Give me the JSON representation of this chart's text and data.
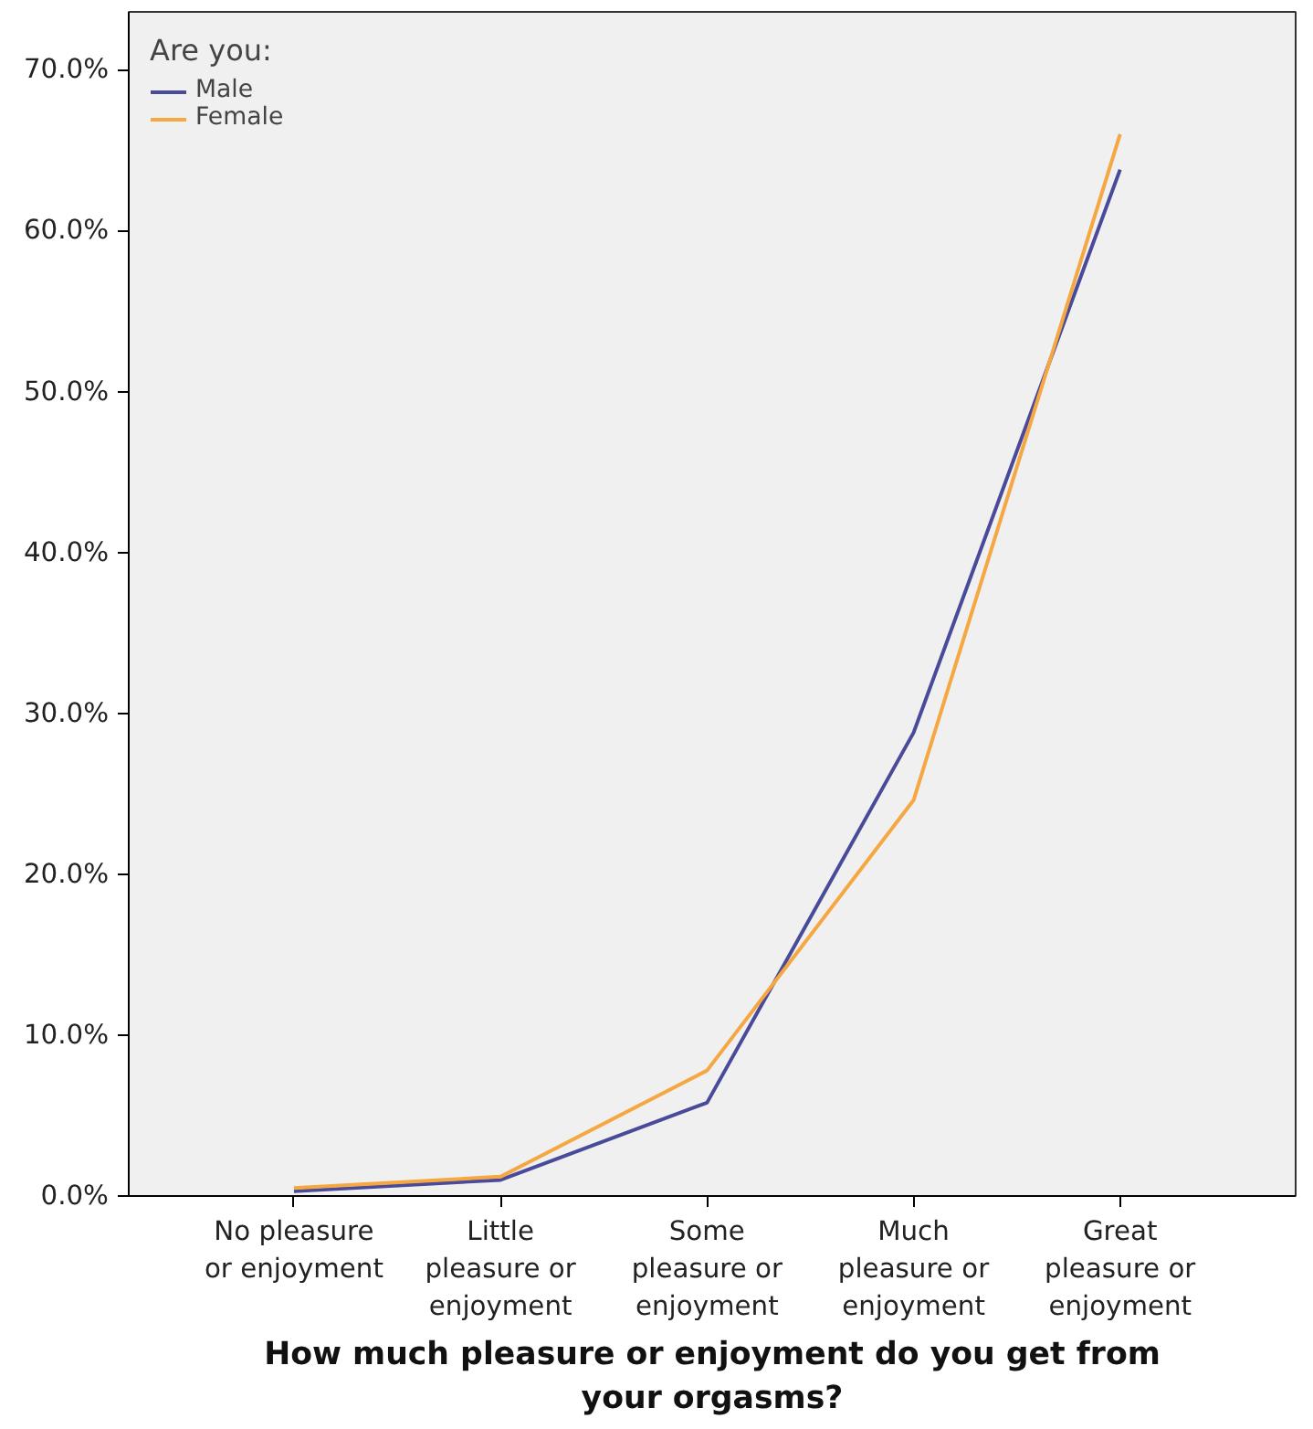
{
  "chart_data": {
    "type": "line",
    "xlabel": "How much pleasure or enjoyment do you get from your orgasms?",
    "legend_title": "Are you:",
    "legend": "top left",
    "grid": false,
    "categories": [
      "No pleasure or enjoyment",
      "Little pleasure or enjoyment",
      "Some pleasure or enjoyment",
      "Much pleasure or enjoyment",
      "Great pleasure or enjoyment"
    ],
    "series": [
      {
        "name": "Male",
        "color": "#4a4a9a",
        "values": [
          0.3,
          1.0,
          5.8,
          28.8,
          63.8
        ]
      },
      {
        "name": "Female",
        "color": "#f5a742",
        "values": [
          0.5,
          1.2,
          7.8,
          24.6,
          66.0
        ]
      }
    ],
    "ylim": [
      0,
      73.6
    ],
    "yticks": [
      {
        "value": 0,
        "label": "0.0%"
      },
      {
        "value": 10,
        "label": "10.0%"
      },
      {
        "value": 20,
        "label": "20.0%"
      },
      {
        "value": 30,
        "label": "30.0%"
      },
      {
        "value": 40,
        "label": "40.0%"
      },
      {
        "value": 50,
        "label": "50.0%"
      },
      {
        "value": 60,
        "label": "60.0%"
      },
      {
        "value": 70,
        "label": "70.0%"
      }
    ]
  }
}
